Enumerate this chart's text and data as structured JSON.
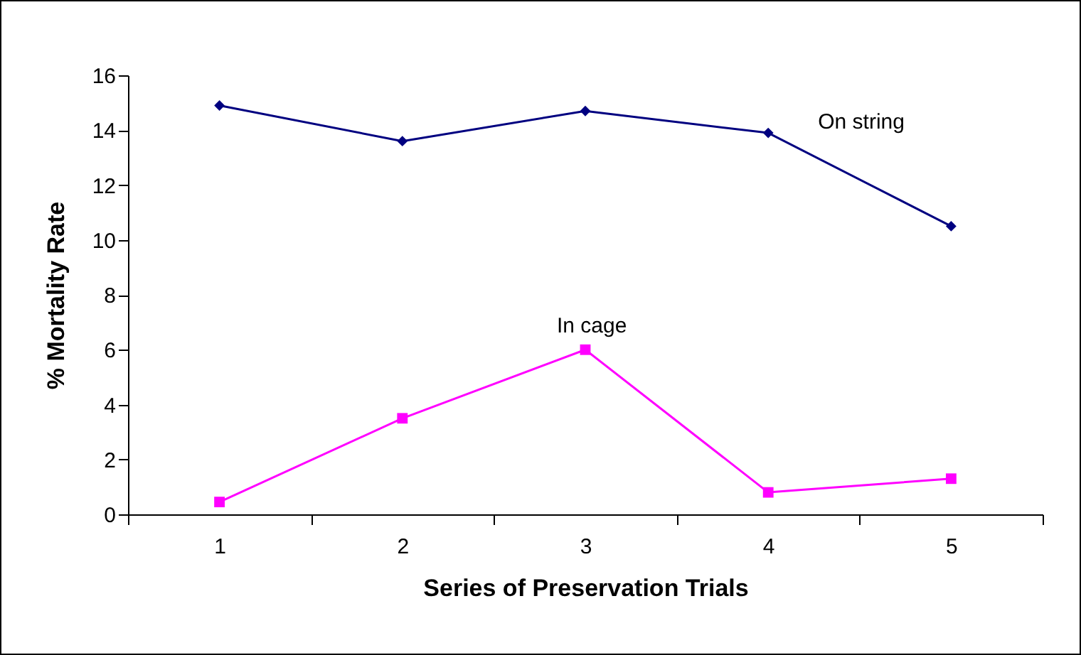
{
  "chart_data": {
    "type": "line",
    "xlabel": "Series of Preservation Trials",
    "ylabel": "% Mortality Rate",
    "categories": [
      "1",
      "2",
      "3",
      "4",
      "5"
    ],
    "series": [
      {
        "name": "On string",
        "color": "#000080",
        "marker": "diamond",
        "values": [
          14.9,
          13.6,
          14.7,
          13.9,
          10.5
        ]
      },
      {
        "name": "In cage",
        "color": "#ff00ff",
        "marker": "square",
        "values": [
          0.45,
          3.5,
          6.0,
          0.8,
          1.3
        ]
      }
    ],
    "ylim": [
      0,
      16
    ],
    "yticks": [
      0,
      2,
      4,
      6,
      8,
      10,
      12,
      14,
      16
    ],
    "grid": false,
    "legend": false
  }
}
